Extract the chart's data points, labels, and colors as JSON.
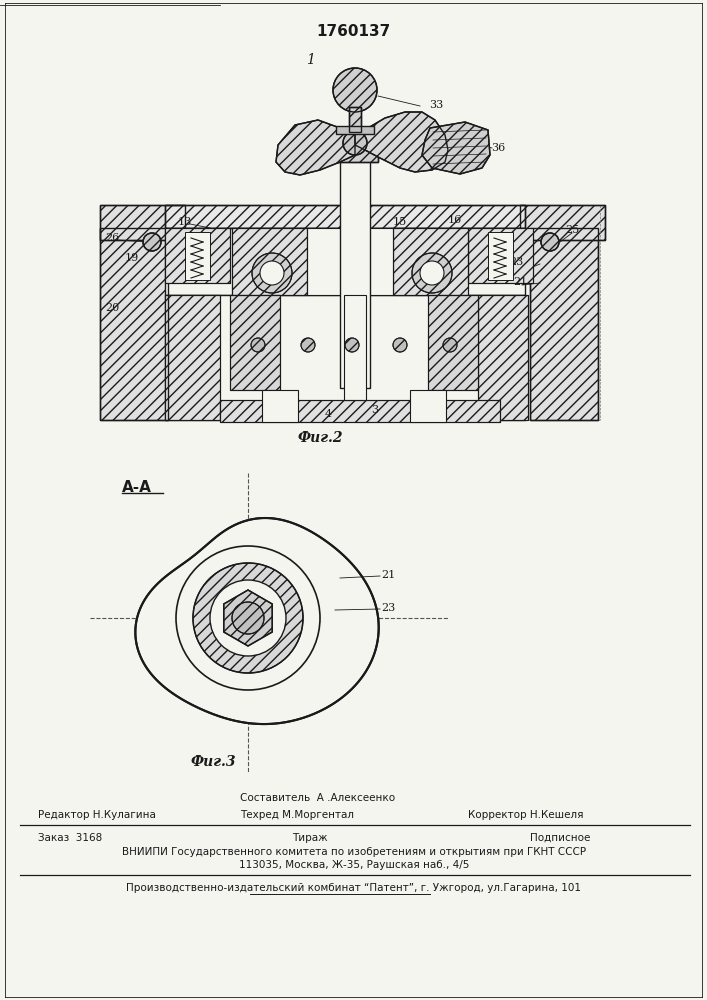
{
  "patent_number": "1760137",
  "fig1_label": "1",
  "fig2_label": "Фиг.2",
  "fig3_label": "Фиг.3",
  "section_label": "A-A",
  "bg_color": "#f5f5f0",
  "line_color": "#1a1a1a",
  "hatch_color": "#333333",
  "footer_line1_left": "Редактор Н.Кулагина",
  "footer_line1_center_top": "Составитель  А .Алексеенко",
  "footer_line1_center": "Техред М.Моргентал",
  "footer_line1_right": "Корректор Н.Кешеля",
  "footer_line2_left": "Заказ  3168",
  "footer_line2_center": "Тираж",
  "footer_line2_right": "Подписное",
  "footer_line3": "ВНИИПИ Государственного комитета по изобретениям и открытиям при ГКНТ СССР",
  "footer_line4": "113035, Москва, Ж-35, Раушская наб., 4/5",
  "footer_line5": "Производственно-издательский комбинат “Патент”, г. Ужгород, ул.Гагарина, 101"
}
